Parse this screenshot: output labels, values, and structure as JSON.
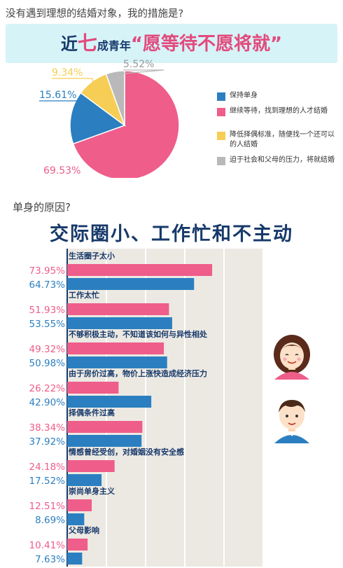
{
  "question": "没有遇到理想的结婚对象，我的措施是?",
  "banner": {
    "part1": "近",
    "part2": "七",
    "part3": "成青年",
    "part4": "“愿等待不愿将就”"
  },
  "colors": {
    "blue": "#2b7fc0",
    "pink": "#ef5d8a",
    "yellow": "#f6cd55",
    "gray": "#b9b9b9",
    "navy": "#17396a",
    "grid_bg": "#ece9e3"
  },
  "section2_title": "单身的原因?",
  "section2_banner": "交际圈小、工作忙和不主动",
  "chart_data": [
    {
      "type": "pie",
      "slices": [
        {
          "label": "继续等待，找到理想的人才结婚",
          "value": 69.53,
          "value_label": "69.53%",
          "color": "#ef5d8a"
        },
        {
          "label": "保持单身",
          "value": 15.61,
          "value_label": "15.61%",
          "color": "#2b7fc0"
        },
        {
          "label": "降低择偶标准，随便找一个还可以的人结婚",
          "value": 9.34,
          "value_label": "9.34%",
          "color": "#f6cd55"
        },
        {
          "label": "迫于社会和父母的压力，将就结婚",
          "value": 5.52,
          "value_label": "5.52%",
          "color": "#b9b9b9"
        }
      ],
      "legend": [
        {
          "label": "保持单身",
          "color": "#2b7fc0"
        },
        {
          "label": "继续等待，找到理想的人才结婚",
          "color": "#ef5d8a"
        },
        {
          "label": "降低择偶标准，随便找一个还可以的人结婚",
          "color": "#f6cd55"
        },
        {
          "label": "迫于社会和父母的压力，将就结婚",
          "color": "#b9b9b9"
        }
      ],
      "legend_position": "right"
    },
    {
      "type": "bar",
      "orientation": "horizontal",
      "categories": [
        "生活圈子太小",
        "工作太忙",
        "不够积极主动，不知道该如何与异性相处",
        "由于房价过高，物价上涨快造成经济压力",
        "择偶条件过高",
        "情感曾经受创，对婚姻没有安全感",
        "崇尚单身主义",
        "父母影响"
      ],
      "series": [
        {
          "color": "#ef5d8a",
          "avatar": "female",
          "values": [
            73.95,
            51.93,
            49.32,
            26.22,
            38.34,
            24.18,
            12.51,
            10.41
          ],
          "labels": [
            "73.95%",
            "51.93%",
            "49.32%",
            "26.22%",
            "38.34%",
            "24.18%",
            "12.51%",
            "10.41%"
          ]
        },
        {
          "color": "#2b7fc0",
          "avatar": "male",
          "values": [
            64.73,
            53.55,
            50.98,
            42.9,
            37.92,
            17.52,
            8.69,
            7.63
          ],
          "labels": [
            "64.73%",
            "53.55%",
            "50.98%",
            "42.90%",
            "37.92%",
            "17.52%",
            "8.69%",
            "7.63%"
          ]
        }
      ],
      "xlim": [
        0,
        100
      ],
      "grid": true
    }
  ]
}
